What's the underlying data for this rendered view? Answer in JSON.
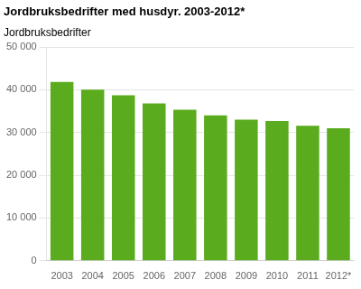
{
  "chart_data": {
    "type": "bar",
    "title": "Jordbruksbedrifter med husdyr. 2003-2012*",
    "ylabel": "Jordbruksbedrifter",
    "categories": [
      "2003",
      "2004",
      "2005",
      "2006",
      "2007",
      "2008",
      "2009",
      "2010",
      "2011",
      "2012*"
    ],
    "values": [
      41800,
      40000,
      38700,
      36800,
      35300,
      34000,
      33000,
      32700,
      31600,
      31000
    ],
    "color": "#5aab1e",
    "ylim": [
      0,
      50000
    ],
    "yticks": [
      0,
      {
        "value": 10000,
        "label": "10 000"
      },
      {
        "value": 20000,
        "label": "20 000"
      },
      {
        "value": 30000,
        "label": "30 000"
      },
      {
        "value": 40000,
        "label": "40 000"
      },
      {
        "value": 50000,
        "label": "50 000"
      }
    ],
    "grid": true
  }
}
